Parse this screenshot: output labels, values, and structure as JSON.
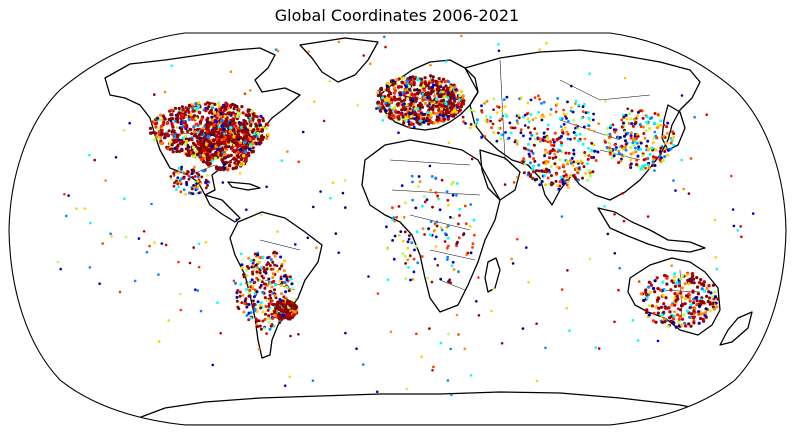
{
  "title": "Global Coordinates 2006-2021",
  "projection": "Robinson",
  "colors": {
    "background": "#ffffff",
    "outline": "#000000",
    "point_scale": [
      "#8b0000",
      "#cc0000",
      "#ff3300",
      "#ff8800",
      "#ffd000",
      "#aaff55",
      "#00ffff",
      "#0088ff",
      "#0000cc",
      "#000080"
    ]
  }
}
